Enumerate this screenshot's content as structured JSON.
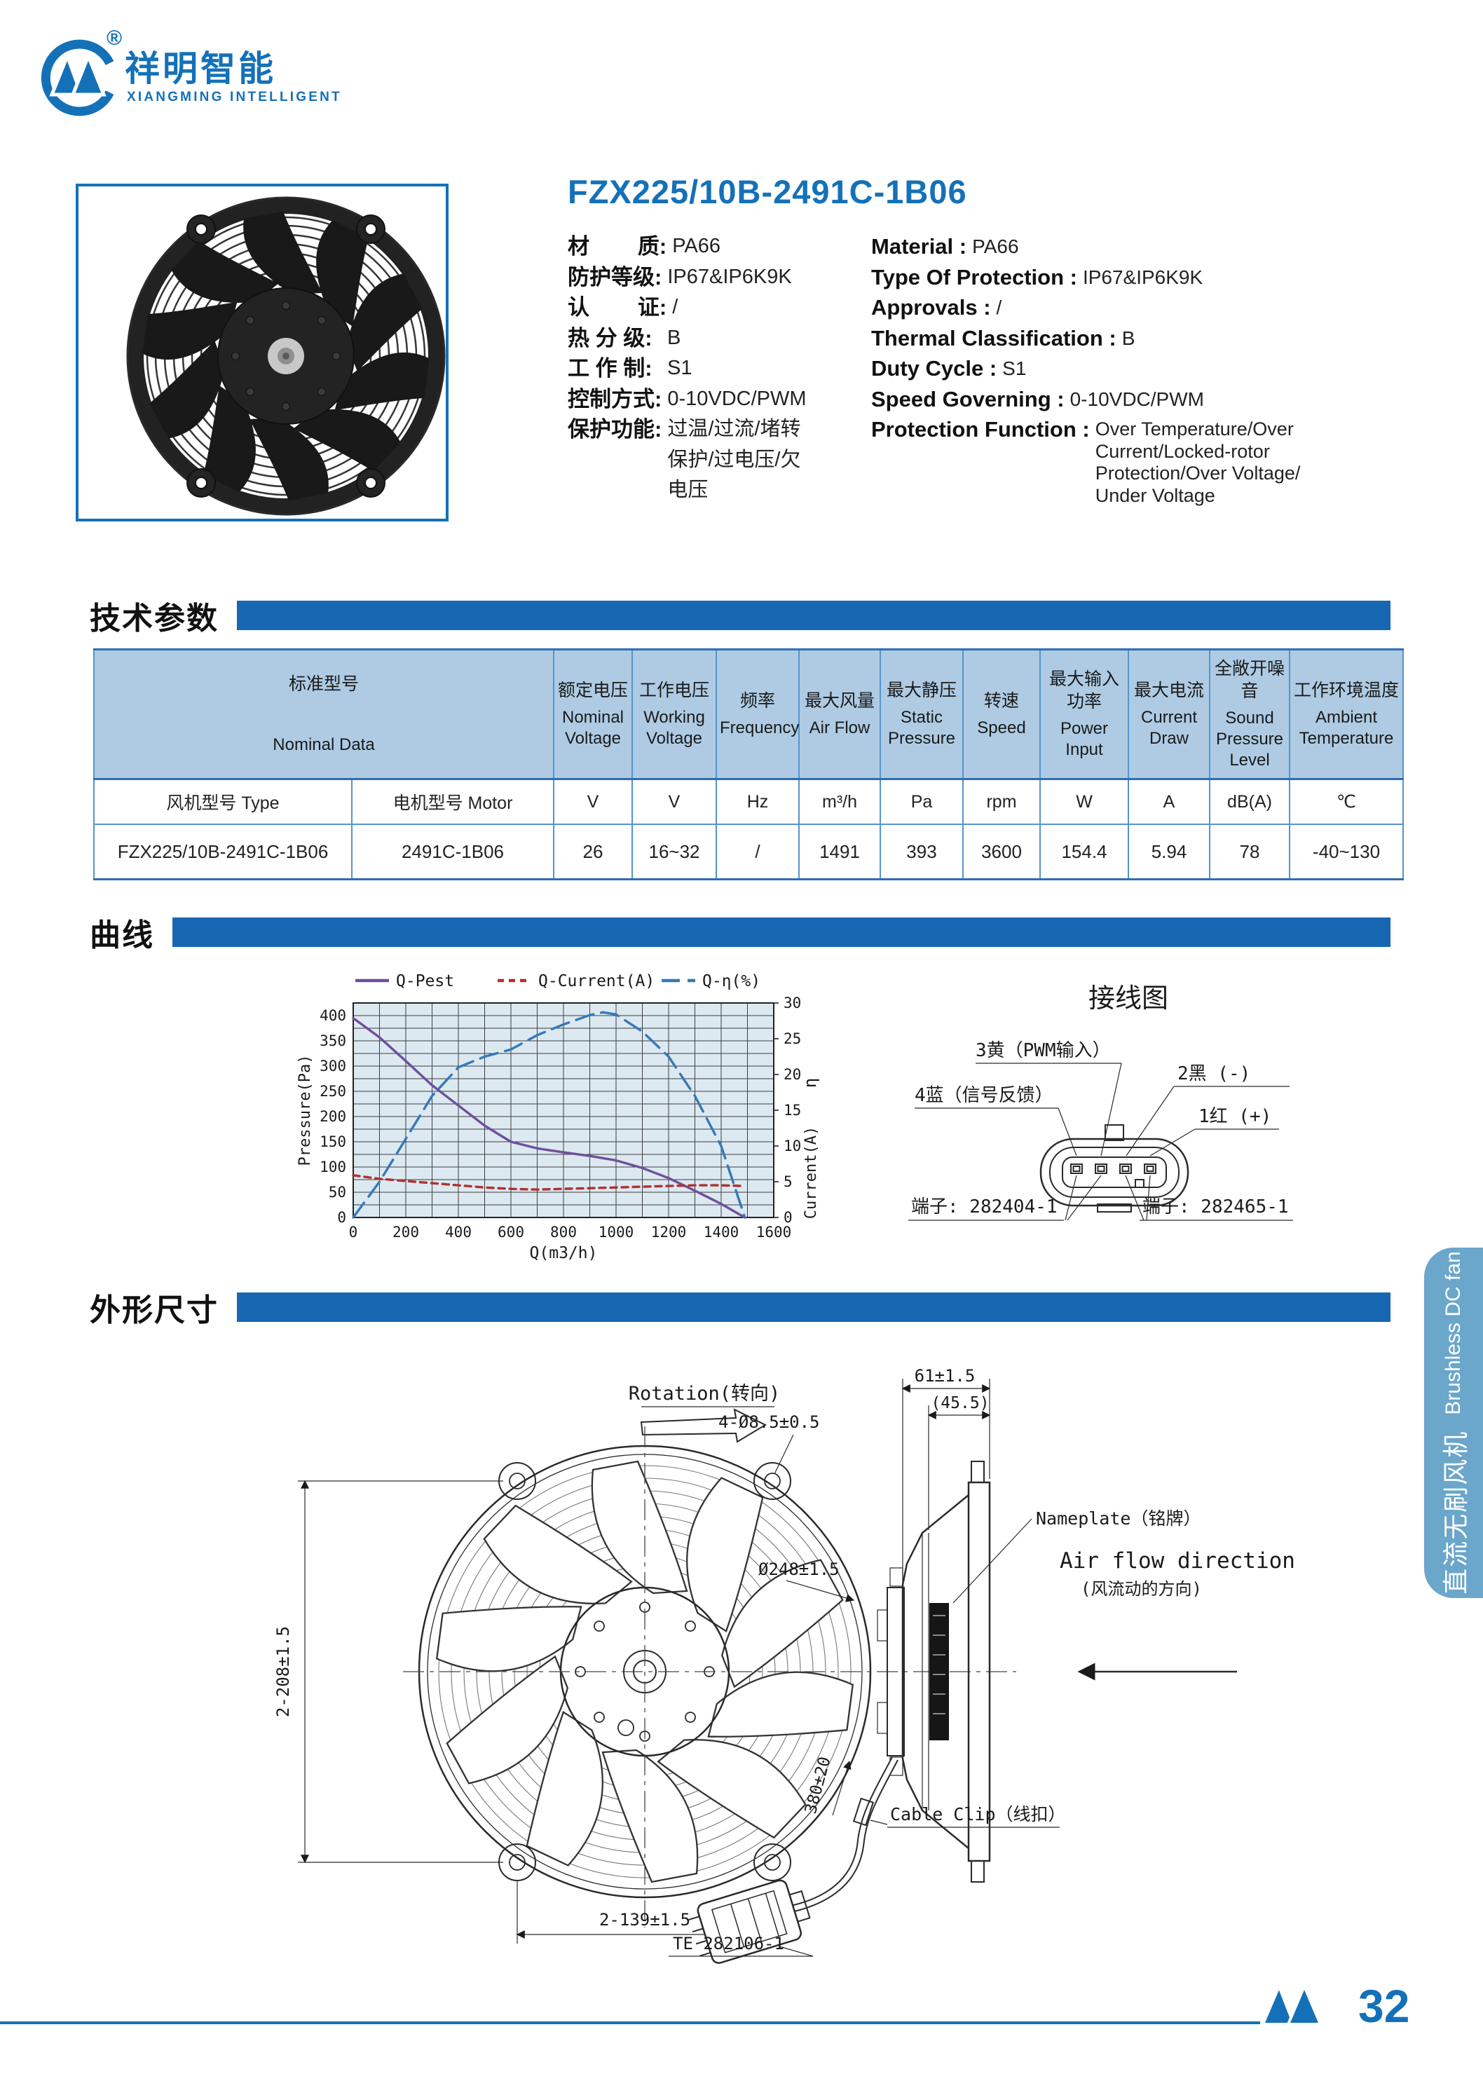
{
  "brand": {
    "cn": "祥明智能",
    "en": "XIANGMING INTELLIGENT",
    "reg": "®"
  },
  "product": {
    "model": "FZX225/10B-2491C-1B06",
    "specs_cn": [
      {
        "label": "材        质:",
        "value": "PA66"
      },
      {
        "label": "防护等级:",
        "value": "IP67&IP6K9K"
      },
      {
        "label": "认        证:",
        "value": "/"
      },
      {
        "label": "热 分 级:",
        "value": "B"
      },
      {
        "label": "工 作 制:",
        "value": "S1"
      },
      {
        "label": "控制方式:",
        "value": "0-10VDC/PWM"
      },
      {
        "label": "保护功能:",
        "value": "过温/过流/堵转\n保护/过电压/欠\n电压"
      }
    ],
    "specs_en": [
      {
        "label": "Material :",
        "value": "PA66"
      },
      {
        "label": "Type Of Protection :",
        "value": "IP67&IP6K9K"
      },
      {
        "label": "Approvals :",
        "value": "/"
      },
      {
        "label": "Thermal Classification :",
        "value": "B"
      },
      {
        "label": "Duty Cycle :",
        "value": "S1"
      },
      {
        "label": "Speed Governing :",
        "value": "0-10VDC/PWM"
      },
      {
        "label": "Protection Function :",
        "value": "Over Temperature/Over\nCurrent/Locked-rotor\nProtection/Over Voltage/\nUnder Voltage"
      }
    ]
  },
  "sections": {
    "tech": "技术参数",
    "curve": "曲线",
    "dims": "外形尺寸"
  },
  "table": {
    "headers": [
      {
        "cn": "标准型号",
        "en": "Nominal Data",
        "span": 2,
        "spread": true
      },
      {
        "cn": "额定电压",
        "en": "Nominal Voltage"
      },
      {
        "cn": "工作电压",
        "en": "Working Voltage"
      },
      {
        "cn": "频率",
        "en": "Frequency"
      },
      {
        "cn": "最大风量",
        "en": "Air Flow"
      },
      {
        "cn": "最大静压",
        "en": "Static Pressure"
      },
      {
        "cn": "转速",
        "en": "Speed"
      },
      {
        "cn": "最大输入 功率",
        "en": "Power Input"
      },
      {
        "cn": "最大电流",
        "en": "Current Draw"
      },
      {
        "cn": "全敞开噪音",
        "en": "Sound Pressure Level"
      },
      {
        "cn": "工作环境温度",
        "en": "Ambient Temperature"
      }
    ],
    "units": [
      "风机型号 Type",
      "电机型号 Motor",
      "V",
      "V",
      "Hz",
      "m³/h",
      "Pa",
      "rpm",
      "W",
      "A",
      "dB(A)",
      "℃"
    ],
    "rows": [
      [
        "FZX225/10B-2491C-1B06",
        "2491C-1B06",
        "26",
        "16~32",
        "/",
        "1491",
        "393",
        "3600",
        "154.4",
        "5.94",
        "78",
        "-40~130"
      ]
    ]
  },
  "chart_data": {
    "type": "line",
    "xlabel": "Q(m3/h)",
    "ylabel_left": "Pressure(Pa)",
    "ylabel_right_top": "η",
    "ylabel_right": "Current(A)",
    "xlim": [
      0,
      1600
    ],
    "ylim_left": [
      0,
      425
    ],
    "ylim_right": [
      0,
      30
    ],
    "x_grid": 100,
    "x_tick": 200,
    "y_left_grid": 25,
    "y_left_tick": 50,
    "y_left_tick_max": 400,
    "y_right_tick": 5,
    "grid": true,
    "legend_position": "top",
    "series": [
      {
        "name": "Q-Pest",
        "axis": "left",
        "color": "#6f4f9b",
        "dash": "",
        "points": [
          [
            0,
            395
          ],
          [
            100,
            357
          ],
          [
            200,
            310
          ],
          [
            300,
            262
          ],
          [
            400,
            222
          ],
          [
            500,
            182
          ],
          [
            600,
            150
          ],
          [
            700,
            137
          ],
          [
            800,
            129
          ],
          [
            900,
            122
          ],
          [
            1000,
            113
          ],
          [
            1100,
            98
          ],
          [
            1200,
            78
          ],
          [
            1300,
            53
          ],
          [
            1400,
            27
          ],
          [
            1490,
            0
          ]
        ]
      },
      {
        "name": "Q-Current(A)",
        "axis": "right",
        "color": "#b03030",
        "dash": "9 7",
        "points": [
          [
            0,
            5.9
          ],
          [
            100,
            5.4
          ],
          [
            200,
            5.1
          ],
          [
            300,
            4.8
          ],
          [
            400,
            4.5
          ],
          [
            500,
            4.2
          ],
          [
            600,
            4.0
          ],
          [
            700,
            3.9
          ],
          [
            800,
            4.0
          ],
          [
            900,
            4.1
          ],
          [
            1000,
            4.2
          ],
          [
            1100,
            4.3
          ],
          [
            1200,
            4.4
          ],
          [
            1300,
            4.5
          ],
          [
            1400,
            4.5
          ],
          [
            1490,
            4.4
          ]
        ]
      },
      {
        "name": "Q-η(%)",
        "axis": "right",
        "color": "#3579b8",
        "dash": "26 11",
        "points": [
          [
            0,
            0
          ],
          [
            100,
            5
          ],
          [
            200,
            11
          ],
          [
            300,
            17
          ],
          [
            400,
            21
          ],
          [
            500,
            22.5
          ],
          [
            600,
            23.5
          ],
          [
            700,
            25.5
          ],
          [
            800,
            27
          ],
          [
            900,
            28.3
          ],
          [
            950,
            28.7
          ],
          [
            1000,
            28.4
          ],
          [
            1100,
            26
          ],
          [
            1200,
            22.5
          ],
          [
            1300,
            17
          ],
          [
            1400,
            10
          ],
          [
            1490,
            0
          ]
        ]
      }
    ]
  },
  "wiring": {
    "title": "接线图",
    "pin3": "3黄（PWM输入）",
    "pin2": "2黑 (-)",
    "pin4": "4蓝（信号反馈）",
    "pin1": "1红 (+)",
    "terminal_left": "端子: 282404-1",
    "terminal_right": "端子: 282465-1"
  },
  "outline": {
    "rotation": "Rotation(转向)",
    "holes": "4-Ø8.5±0.5",
    "diameter": "Ø248±1.5",
    "height": "2-208±1.5",
    "width": "2-139±1.5",
    "depth": "61±1.5",
    "depth_inner": "(45.5)",
    "nameplate": "Nameplate（铭牌）",
    "airflow_en": "Air flow direction",
    "airflow_cn": "(风流动的方向)",
    "cable_clip": "Cable Clip（线扣）",
    "cable_len": "380±20",
    "te": "TE 282106-1"
  },
  "sidebar": {
    "cn": "直流无刷风机",
    "en": "Brushless DC fan"
  },
  "footer": {
    "page": "32"
  },
  "colors": {
    "accent": "#1471b8",
    "bar": "#1767b2",
    "table_header": "#aecbe3",
    "chart_bg": "#dce9f1"
  }
}
